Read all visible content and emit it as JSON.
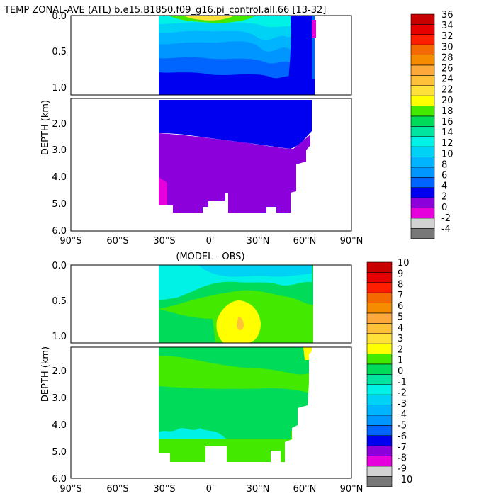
{
  "chart_data": [
    {
      "type": "contour",
      "title": "TEMP ZONAL-AVE (ATL) b.e15.B1850.f09_g16.pi_control.all.66 [13-32]",
      "ylabel": "DEPTH (km)",
      "xticks": [
        "90°S",
        "60°S",
        "30°S",
        "0°",
        "30°N",
        "60°N",
        "90°N"
      ],
      "xlim": [
        -90,
        90
      ],
      "upper_yticks": [
        "0.0",
        "0.5",
        "1.0"
      ],
      "upper_ylim": [
        0,
        1.1
      ],
      "lower_yticks": [
        "2.0",
        "3.0",
        "4.0",
        "5.0",
        "6.0"
      ],
      "lower_ylim": [
        1.1,
        6.0
      ],
      "colorbar_labels": [
        "36",
        "34",
        "32",
        "30",
        "28",
        "26",
        "24",
        "22",
        "20",
        "18",
        "16",
        "14",
        "12",
        "10",
        "8",
        "6",
        "4",
        "2",
        "0",
        "-2",
        "-4"
      ],
      "colorbar_colors": [
        "#c80000",
        "#e60000",
        "#ff1e00",
        "#f56a00",
        "#f58c00",
        "#fca83a",
        "#ffc03a",
        "#ffe13a",
        "#ffff00",
        "#44e900",
        "#00dc5a",
        "#00e6a0",
        "#00f2e6",
        "#00d2f5",
        "#00b4ff",
        "#0096ff",
        "#0064ff",
        "#0000f0",
        "#8c00dc",
        "#e600dc",
        "#d2d2d2",
        "#787878"
      ]
    },
    {
      "type": "contour",
      "title": "(MODEL - OBS)",
      "ylabel": "DEPTH (km)",
      "xticks": [
        "90°S",
        "60°S",
        "30°S",
        "0°",
        "30°N",
        "60°N",
        "90°N"
      ],
      "xlim": [
        -90,
        90
      ],
      "upper_yticks": [
        "0.0",
        "0.5",
        "1.0"
      ],
      "upper_ylim": [
        0,
        1.1
      ],
      "lower_yticks": [
        "2.0",
        "3.0",
        "4.0",
        "5.0",
        "6.0"
      ],
      "lower_ylim": [
        1.1,
        6.0
      ],
      "colorbar_labels": [
        "10",
        "9",
        "8",
        "7",
        "6",
        "5",
        "4",
        "3",
        "2",
        "1",
        "0",
        "-1",
        "-2",
        "-3",
        "-4",
        "-5",
        "-6",
        "-7",
        "-8",
        "-9",
        "-10"
      ],
      "colorbar_colors": [
        "#c80000",
        "#e60000",
        "#ff1e00",
        "#f56a00",
        "#f58c00",
        "#fca83a",
        "#ffc03a",
        "#ffe13a",
        "#ffff00",
        "#44e900",
        "#00dc5a",
        "#00e6a0",
        "#00f2e6",
        "#00d2f5",
        "#00b4ff",
        "#0096ff",
        "#0064ff",
        "#0000f0",
        "#8c00dc",
        "#e600dc",
        "#d2d2d2",
        "#787878"
      ]
    }
  ]
}
